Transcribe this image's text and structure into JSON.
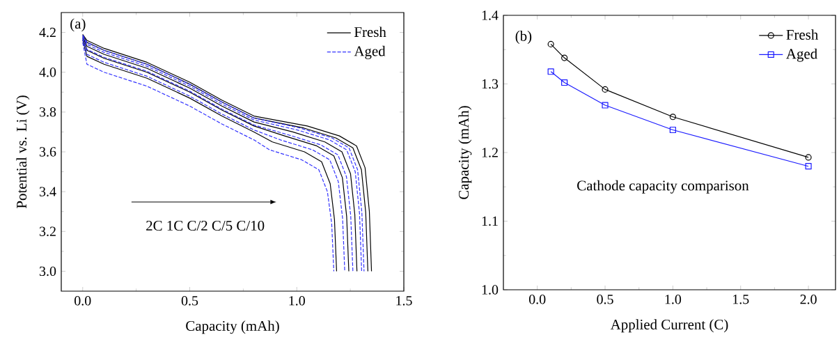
{
  "chart_data": [
    {
      "type": "line",
      "xlabel": "Capacity (mAh)",
      "ylabel": "Potential vs. Li (V)",
      "xlim": [
        -0.1,
        1.5
      ],
      "ylim": [
        2.9,
        4.3
      ],
      "xticks": [
        {
          "value": 0,
          "label": "0.0"
        },
        {
          "value": 0.5,
          "label": "0.5"
        },
        {
          "value": 1,
          "label": "1.0"
        },
        {
          "value": 1.5,
          "label": "1.5"
        }
      ],
      "yticks": [
        {
          "value": 3.0,
          "label": "3.0"
        },
        {
          "value": 3.2,
          "label": "3.2"
        },
        {
          "value": 3.4,
          "label": "3.4"
        },
        {
          "value": 3.6,
          "label": "3.6"
        },
        {
          "value": 3.8,
          "label": "3.8"
        },
        {
          "value": 4.0,
          "label": "4.0"
        },
        {
          "value": 4.2,
          "label": "4.2"
        }
      ],
      "legend": "top right",
      "annotations": [
        "(a)",
        "2C 1C C/2 C/5 C/10"
      ],
      "series": [
        {
          "name": "Fresh",
          "color": "#000000",
          "line_style": "solid",
          "x": [
            0,
            0.02,
            0.1,
            0.3,
            0.5,
            0.65,
            0.8,
            1.049,
            1.199,
            1.279,
            1.319,
            1.339,
            1.349
          ],
          "values": [
            4.19,
            4.16,
            4.12,
            4.05,
            3.95,
            3.86,
            3.78,
            3.73,
            3.68,
            3.63,
            3.52,
            3.3,
            3.0
          ]
        },
        {
          "color": "#000000",
          "line_style": "solid",
          "x": [
            0,
            0.02,
            0.1,
            0.3,
            0.5,
            0.65,
            0.8,
            1.032,
            1.182,
            1.262,
            1.302,
            1.322,
            1.332
          ],
          "values": [
            4.187,
            4.15,
            4.11,
            4.04,
            3.94,
            3.85,
            3.77,
            3.72,
            3.67,
            3.62,
            3.51,
            3.295,
            3.0
          ]
        },
        {
          "color": "#000000",
          "line_style": "solid",
          "x": [
            0,
            0.02,
            0.1,
            0.3,
            0.5,
            0.65,
            0.8,
            0.981,
            1.131,
            1.211,
            1.251,
            1.271,
            1.281
          ],
          "values": [
            4.18,
            4.13,
            4.09,
            4.02,
            3.92,
            3.83,
            3.75,
            3.7,
            3.65,
            3.6,
            3.49,
            3.285,
            3.0
          ]
        },
        {
          "color": "#000000",
          "line_style": "solid",
          "x": [
            0,
            0.02,
            0.1,
            0.3,
            0.5,
            0.65,
            0.8,
            0.943,
            1.093,
            1.173,
            1.213,
            1.233,
            1.243
          ],
          "values": [
            4.173,
            4.11,
            4.07,
            4.0,
            3.9,
            3.81,
            3.73,
            3.68,
            3.63,
            3.58,
            3.47,
            3.275,
            3.0
          ]
        },
        {
          "color": "#000000",
          "line_style": "solid",
          "x": [
            0,
            0.02,
            0.1,
            0.3,
            0.5,
            0.65,
            0.8,
            0.886,
            1.036,
            1.116,
            1.156,
            1.176,
            1.186
          ],
          "values": [
            4.163,
            4.08,
            4.04,
            3.97,
            3.87,
            3.78,
            3.7,
            3.65,
            3.6,
            3.55,
            3.44,
            3.26,
            3.0
          ]
        },
        {
          "name": "Aged",
          "color": "#3333ff",
          "line_style": "dashed",
          "x": [
            0,
            0.02,
            0.1,
            0.3,
            0.5,
            0.65,
            0.8,
            1.014,
            1.164,
            1.244,
            1.284,
            1.304,
            1.314
          ],
          "values": [
            4.187,
            4.15,
            4.11,
            4.04,
            3.94,
            3.85,
            3.77,
            3.72,
            3.67,
            3.62,
            3.51,
            3.295,
            3.0
          ]
        },
        {
          "color": "#3333ff",
          "line_style": "dashed",
          "x": [
            0,
            0.02,
            0.1,
            0.3,
            0.5,
            0.65,
            0.8,
            1.003,
            1.153,
            1.233,
            1.273,
            1.293,
            1.303
          ],
          "values": [
            4.183,
            4.14,
            4.1,
            4.03,
            3.93,
            3.84,
            3.76,
            3.71,
            3.66,
            3.61,
            3.5,
            3.29,
            3.0
          ]
        },
        {
          "color": "#3333ff",
          "line_style": "dashed",
          "x": [
            0,
            0.02,
            0.1,
            0.3,
            0.5,
            0.65,
            0.8,
            0.962,
            1.112,
            1.192,
            1.232,
            1.252,
            1.262
          ],
          "values": [
            4.175,
            4.115,
            4.075,
            4.005,
            3.905,
            3.815,
            3.735,
            3.685,
            3.635,
            3.585,
            3.475,
            3.278,
            3.0
          ]
        },
        {
          "color": "#3333ff",
          "line_style": "dashed",
          "x": [
            0,
            0.02,
            0.1,
            0.3,
            0.5,
            0.65,
            0.8,
            0.924,
            1.074,
            1.154,
            1.194,
            1.214,
            1.224
          ],
          "values": [
            4.167,
            4.09,
            4.05,
            3.98,
            3.88,
            3.79,
            3.71,
            3.66,
            3.61,
            3.56,
            3.45,
            3.265,
            3.0
          ]
        },
        {
          "color": "#3333ff",
          "line_style": "dashed",
          "x": [
            0,
            0.02,
            0.1,
            0.3,
            0.5,
            0.65,
            0.8,
            0.873,
            1.023,
            1.103,
            1.143,
            1.163,
            1.173
          ],
          "values": [
            4.15,
            4.04,
            4.0,
            3.93,
            3.83,
            3.74,
            3.66,
            3.61,
            3.56,
            3.51,
            3.4,
            3.24,
            3.0
          ]
        }
      ]
    },
    {
      "type": "line",
      "xlabel": "Applied Current (C)",
      "ylabel": "Capacity (mAh)",
      "xlim": [
        -0.25,
        2.2
      ],
      "ylim": [
        1.0,
        1.4
      ],
      "xticks": [
        {
          "value": 0,
          "label": "0.0"
        },
        {
          "value": 0.5,
          "label": "0.5"
        },
        {
          "value": 1,
          "label": "1.0"
        },
        {
          "value": 1.5,
          "label": "1.5"
        },
        {
          "value": 2,
          "label": "2.0"
        }
      ],
      "yticks": [
        {
          "value": 1.0,
          "label": "1.0"
        },
        {
          "value": 1.1,
          "label": "1.1"
        },
        {
          "value": 1.2,
          "label": "1.2"
        },
        {
          "value": 1.3,
          "label": "1.3"
        },
        {
          "value": 1.4,
          "label": "1.4"
        }
      ],
      "legend": "top right",
      "annotations": [
        "(b)",
        "Cathode capacity comparison"
      ],
      "series": [
        {
          "name": "Fresh",
          "color": "#000000",
          "marker": "circle",
          "line_style": "solid",
          "x": [
            0.1,
            0.2,
            0.5,
            1,
            2
          ],
          "values": [
            1.358,
            1.338,
            1.292,
            1.252,
            1.193
          ]
        },
        {
          "name": "Aged",
          "color": "#1a1aff",
          "marker": "square",
          "line_style": "solid",
          "x": [
            0.1,
            0.2,
            0.5,
            1,
            2
          ],
          "values": [
            1.318,
            1.302,
            1.269,
            1.233,
            1.18
          ]
        }
      ]
    }
  ]
}
